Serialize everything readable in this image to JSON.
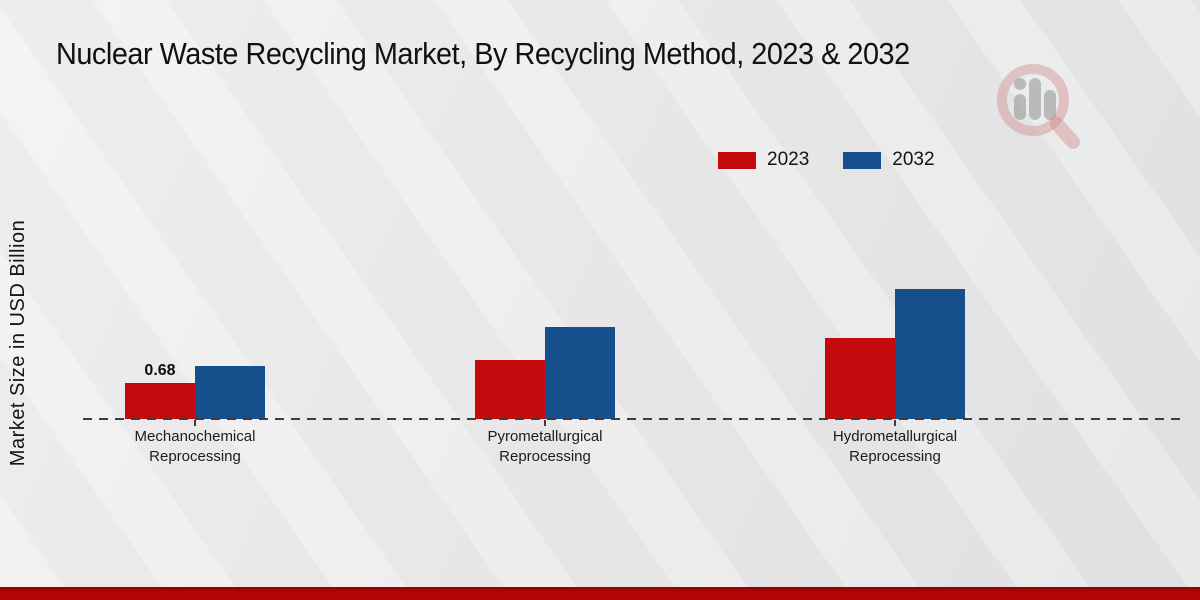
{
  "page": {
    "watermark_icon": "magnifier-bar-chart-logo",
    "footer_bar_color": "#b20404",
    "background_color": "#e9e9ea"
  },
  "chart_data": {
    "type": "bar",
    "title": "Nuclear Waste Recycling Market, By Recycling Method, 2023 & 2032",
    "xlabel": "",
    "ylabel": "Market Size in USD Billion",
    "categories": [
      "Mechanochemical\nReprocessing",
      "Pyrometallurgical\nReprocessing",
      "Hydrometallurgical\nReprocessing"
    ],
    "series": [
      {
        "name": "2023",
        "color": "#c40a0c",
        "values": [
          0.68,
          1.11,
          1.53
        ],
        "data_labels": [
          "0.68",
          "",
          ""
        ]
      },
      {
        "name": "2032",
        "color": "#15508d",
        "values": [
          1.0,
          1.74,
          2.46
        ],
        "data_labels": [
          "",
          "",
          ""
        ]
      }
    ],
    "ylim": [
      0,
      2.8
    ],
    "grid": false,
    "legend_position": "top-right",
    "baseline_style": "dashed",
    "axis_line_color": "#3d3d3d",
    "value_label_color": "#0d0d0d"
  }
}
